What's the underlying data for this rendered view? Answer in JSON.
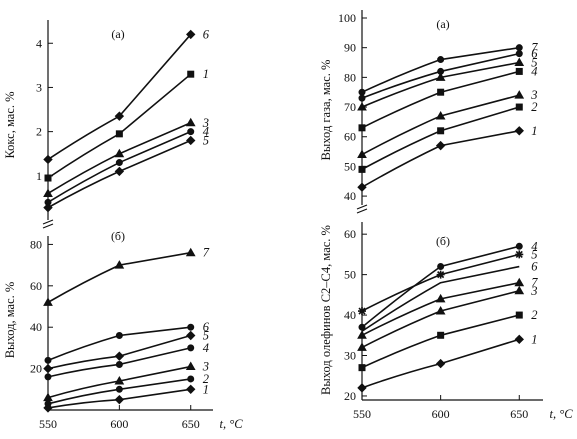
{
  "chart_data": [
    {
      "type": "line",
      "panel": "(а)",
      "ylabel": "Кокс, мас. %",
      "x": [
        550,
        600,
        650
      ],
      "xlim": [
        550,
        660
      ],
      "ylim": [
        0,
        4.3
      ],
      "yticks": [
        "1",
        "2",
        "3",
        "4"
      ],
      "series": [
        {
          "name": "6",
          "marker": "diamond",
          "values": [
            1.37,
            2.35,
            4.2
          ]
        },
        {
          "name": "1",
          "marker": "square",
          "values": [
            0.95,
            1.95,
            3.3
          ]
        },
        {
          "name": "3",
          "marker": "triangle",
          "values": [
            0.6,
            1.5,
            2.2
          ]
        },
        {
          "name": "4",
          "marker": "circle",
          "values": [
            0.4,
            1.3,
            2.0
          ]
        },
        {
          "name": "5",
          "marker": "diamond",
          "values": [
            0.28,
            1.1,
            1.8
          ]
        }
      ]
    },
    {
      "type": "line",
      "panel": "(б)",
      "ylabel": "Выход, мас. %",
      "x": [
        550,
        600,
        650
      ],
      "xlim": [
        550,
        660
      ],
      "ylim": [
        0,
        86
      ],
      "yticks": [
        "20",
        "40",
        "60",
        "80"
      ],
      "xticks": [
        "550",
        "600",
        "650"
      ],
      "xlabel": "t, °C",
      "series": [
        {
          "name": "7",
          "marker": "triangle",
          "values": [
            52,
            70,
            76
          ]
        },
        {
          "name": "6",
          "marker": "circle",
          "values": [
            24,
            36,
            40
          ]
        },
        {
          "name": "5",
          "marker": "diamond",
          "values": [
            20,
            26,
            36
          ]
        },
        {
          "name": "4",
          "marker": "circle",
          "values": [
            16,
            22,
            30
          ]
        },
        {
          "name": "3",
          "marker": "triangle",
          "values": [
            6,
            14,
            21
          ]
        },
        {
          "name": "2",
          "marker": "circle",
          "values": [
            3,
            10,
            15
          ]
        },
        {
          "name": "1",
          "marker": "diamond",
          "values": [
            1,
            5,
            10
          ]
        }
      ]
    },
    {
      "type": "line",
      "panel": "(а)",
      "ylabel": "Выход газа, мас. %",
      "x": [
        550,
        600,
        650
      ],
      "xlim": [
        550,
        660
      ],
      "ylim": [
        37,
        100
      ],
      "yticks": [
        "40",
        "50",
        "60",
        "70",
        "80",
        "90",
        "100"
      ],
      "series": [
        {
          "name": "7",
          "marker": "circle",
          "values": [
            75,
            86,
            90
          ]
        },
        {
          "name": "6",
          "marker": "circle",
          "values": [
            73,
            82,
            88
          ]
        },
        {
          "name": "5",
          "marker": "triangle",
          "values": [
            70,
            80,
            85
          ]
        },
        {
          "name": "4",
          "marker": "square",
          "values": [
            63,
            75,
            82
          ]
        },
        {
          "name": "3",
          "marker": "triangle",
          "values": [
            54,
            67,
            74
          ]
        },
        {
          "name": "2",
          "marker": "square",
          "values": [
            49,
            62,
            70
          ]
        },
        {
          "name": "1",
          "marker": "diamond",
          "values": [
            43,
            57,
            62
          ]
        }
      ]
    },
    {
      "type": "line",
      "panel": "(б)",
      "ylabel": "Выход олефинов C2–C4, мас. %",
      "x": [
        550,
        600,
        650
      ],
      "xlim": [
        550,
        660
      ],
      "ylim": [
        19,
        64
      ],
      "yticks": [
        "20",
        "30",
        "40",
        "50",
        "60"
      ],
      "xticks": [
        "550",
        "600",
        "650"
      ],
      "xlabel": "t, °C",
      "series": [
        {
          "name": "4",
          "marker": "circle",
          "values": [
            37,
            52,
            57
          ]
        },
        {
          "name": "5",
          "marker": "star",
          "values": [
            41,
            50,
            55
          ]
        },
        {
          "name": "6",
          "marker": "none",
          "values": [
            36,
            48,
            52
          ]
        },
        {
          "name": "7",
          "marker": "triangle",
          "values": [
            35,
            44,
            48
          ]
        },
        {
          "name": "3",
          "marker": "triangle",
          "values": [
            32,
            41,
            46
          ]
        },
        {
          "name": "2",
          "marker": "square",
          "values": [
            27,
            35,
            40
          ]
        },
        {
          "name": "1",
          "marker": "diamond",
          "values": [
            22,
            28,
            34
          ]
        }
      ]
    }
  ]
}
